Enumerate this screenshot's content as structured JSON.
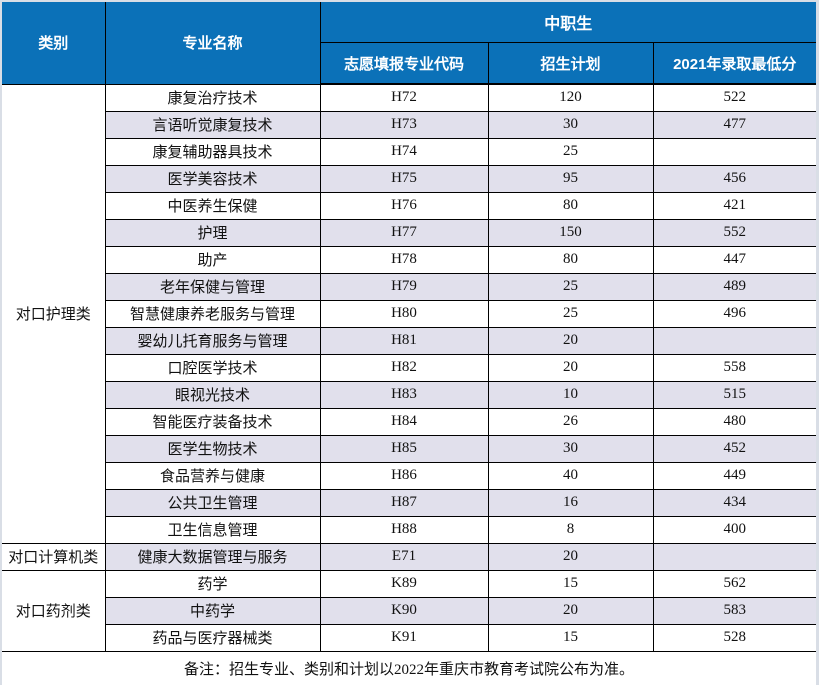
{
  "header": {
    "category": "类别",
    "major_name": "专业名称",
    "group": "中职生",
    "sub": [
      "志愿填报专业代码",
      "招生计划",
      "2021年录取最低分"
    ]
  },
  "colors": {
    "header_bg": "#0b71b8",
    "header_text": "#ffffff",
    "alt_row_bg": "#e1e0ec",
    "border": "#000000"
  },
  "table": {
    "groups": [
      {
        "category": "对口护理类",
        "rows": [
          {
            "name": "康复治疗技术",
            "code": "H72",
            "plan": "120",
            "score": "522"
          },
          {
            "name": "言语听觉康复技术",
            "code": "H73",
            "plan": "30",
            "score": "477"
          },
          {
            "name": "康复辅助器具技术",
            "code": "H74",
            "plan": "25",
            "score": ""
          },
          {
            "name": "医学美容技术",
            "code": "H75",
            "plan": "95",
            "score": "456"
          },
          {
            "name": "中医养生保健",
            "code": "H76",
            "plan": "80",
            "score": "421"
          },
          {
            "name": "护理",
            "code": "H77",
            "plan": "150",
            "score": "552"
          },
          {
            "name": "助产",
            "code": "H78",
            "plan": "80",
            "score": "447"
          },
          {
            "name": "老年保健与管理",
            "code": "H79",
            "plan": "25",
            "score": "489"
          },
          {
            "name": "智慧健康养老服务与管理",
            "code": "H80",
            "plan": "25",
            "score": "496"
          },
          {
            "name": "婴幼儿托育服务与管理",
            "code": "H81",
            "plan": "20",
            "score": ""
          },
          {
            "name": "口腔医学技术",
            "code": "H82",
            "plan": "20",
            "score": "558"
          },
          {
            "name": "眼视光技术",
            "code": "H83",
            "plan": "10",
            "score": "515"
          },
          {
            "name": "智能医疗装备技术",
            "code": "H84",
            "plan": "26",
            "score": "480"
          },
          {
            "name": "医学生物技术",
            "code": "H85",
            "plan": "30",
            "score": "452"
          },
          {
            "name": "食品营养与健康",
            "code": "H86",
            "plan": "40",
            "score": "449"
          },
          {
            "name": "公共卫生管理",
            "code": "H87",
            "plan": "16",
            "score": "434"
          },
          {
            "name": "卫生信息管理",
            "code": "H88",
            "plan": "8",
            "score": "400"
          }
        ]
      },
      {
        "category": "对口计算机类",
        "rows": [
          {
            "name": "健康大数据管理与服务",
            "code": "E71",
            "plan": "20",
            "score": ""
          }
        ]
      },
      {
        "category": "对口药剂类",
        "rows": [
          {
            "name": "药学",
            "code": "K89",
            "plan": "15",
            "score": "562"
          },
          {
            "name": "中药学",
            "code": "K90",
            "plan": "20",
            "score": "583"
          },
          {
            "name": "药品与医疗器械类",
            "code": "K91",
            "plan": "15",
            "score": "528"
          }
        ]
      }
    ]
  },
  "footer": {
    "note": "备注：招生专业、类别和计划以2022年重庆市教育考试院公布为准。"
  }
}
